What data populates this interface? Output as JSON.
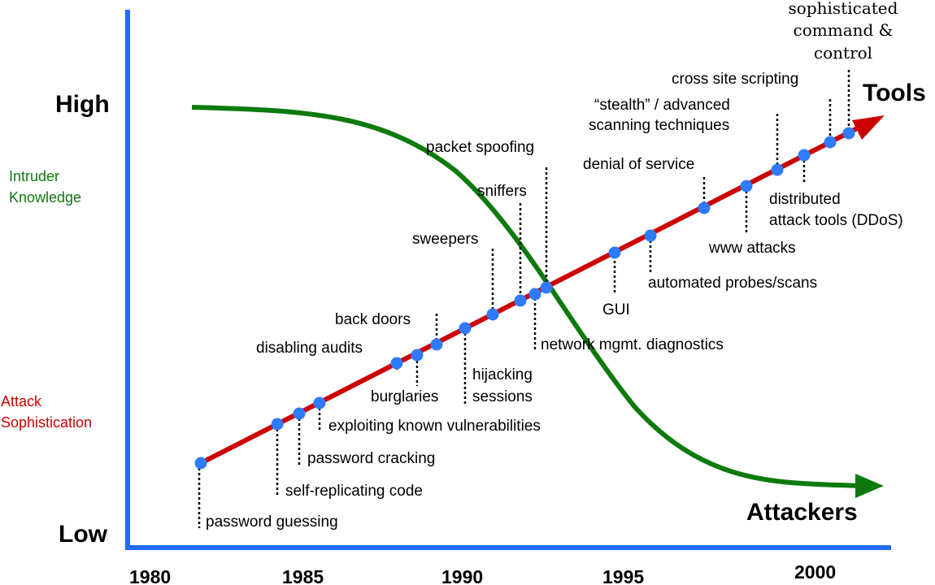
{
  "axis": {
    "y_high": "High",
    "y_low": "Low",
    "x_ticks": [
      "1980",
      "1985",
      "1990",
      "1995",
      "2000"
    ]
  },
  "side_labels": {
    "intruder_knowledge": [
      "Intruder",
      "Knowledge"
    ],
    "attack_sophistication": [
      "Attack",
      "Sophistication"
    ]
  },
  "arrows": {
    "tools": "Tools",
    "attackers": "Attackers"
  },
  "events": {
    "password_guessing": "password guessing",
    "self_replicating_code": "self-replicating code",
    "password_cracking": "password cracking",
    "exploiting_known_vulnerabilities": "exploiting known vulnerabilities",
    "disabling_audits": "disabling audits",
    "burglaries": "burglaries",
    "back_doors": "back doors",
    "hijacking_sessions": [
      "hijacking",
      "sessions"
    ],
    "sweepers": "sweepers",
    "sniffers": "sniffers",
    "network_mgmt_diagnostics": "network mgmt. diagnostics",
    "packet_spoofing": "packet spoofing",
    "gui": "GUI",
    "automated_probes_scans": "automated probes/scans",
    "denial_of_service": "denial of service",
    "www_attacks": "www attacks",
    "stealth_advanced_scanning": [
      "“stealth” / advanced",
      "scanning techniques"
    ],
    "distributed_attack_tools": [
      "distributed",
      "attack tools (DDoS)"
    ],
    "cross_site_scripting": "cross site scripting",
    "sophisticated_command_control": [
      "sophisticated",
      "command &",
      "control"
    ]
  },
  "colors": {
    "axis": "#1f6bff",
    "tools_line": "#cc0000",
    "knowledge_curve": "#0e7a0e",
    "event_dot": "#2f7bff",
    "knowledge_label": "#0e7a0e",
    "sophistication_label": "#cc0000"
  }
}
